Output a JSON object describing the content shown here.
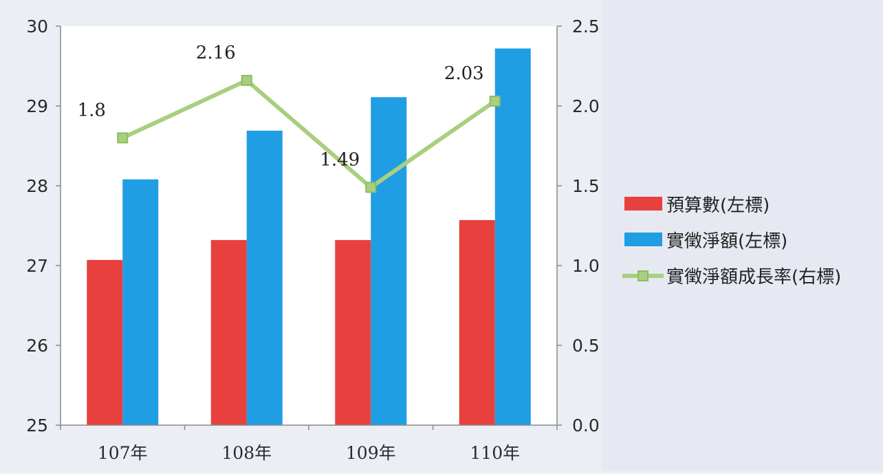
{
  "chart_data": {
    "type": "bar",
    "categories": [
      "107年",
      "108年",
      "109年",
      "110年"
    ],
    "series": [
      {
        "name": "預算數(左標)",
        "kind": "bar",
        "axis": "left",
        "color": "#e8403f",
        "values": [
          27.07,
          27.32,
          27.32,
          27.57
        ]
      },
      {
        "name": "實徵淨額(左標)",
        "kind": "bar",
        "axis": "left",
        "color": "#1f9ee3",
        "values": [
          28.08,
          28.69,
          29.11,
          29.72
        ]
      },
      {
        "name": "實徵淨額成長率(右標)",
        "kind": "line",
        "axis": "right",
        "color": "#a9cf7f",
        "marker_color": "#8cbc63",
        "values": [
          1.8,
          2.16,
          1.49,
          2.03
        ],
        "labels": [
          "1.8",
          "2.16",
          "1.49",
          "2.03"
        ]
      }
    ],
    "left_axis": {
      "ylim": [
        25,
        30
      ],
      "ticks": [
        "25",
        "26",
        "27",
        "28",
        "29",
        "30"
      ]
    },
    "right_axis": {
      "ylim": [
        0,
        2.5
      ],
      "ticks": [
        "0.0",
        "0.5",
        "1.0",
        "1.5",
        "2.0",
        "2.5"
      ]
    },
    "legend_position": "right",
    "grid": false
  }
}
